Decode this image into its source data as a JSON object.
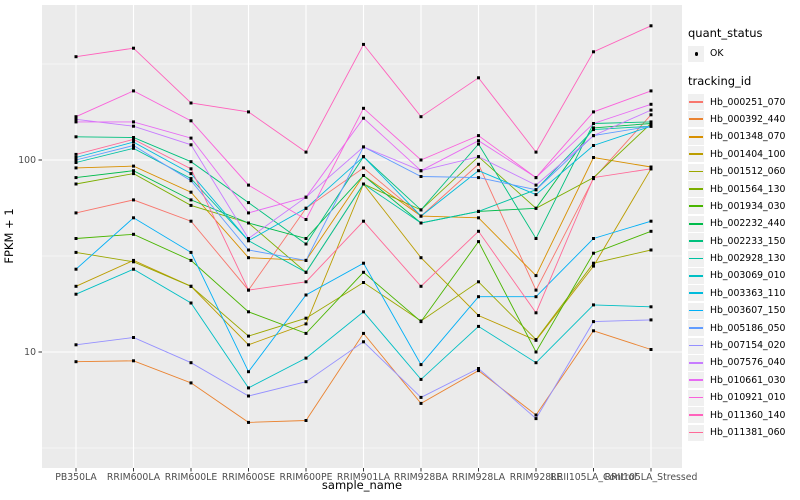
{
  "figure": {
    "background": "#FFFFFF",
    "panel_background": "#EBEBEB",
    "gridline_color": "#FFFFFF",
    "tick_text_color": "#4D4D4D",
    "title_text_color": "#000000"
  },
  "chart_data": {
    "type": "line",
    "title": "",
    "xlabel": "sample_name",
    "ylabel": "FPKM + 1",
    "y_scale": "log10",
    "ylim": [
      2.5,
      650
    ],
    "y_ticks": [
      10,
      100
    ],
    "y_tick_labels": [
      "10",
      "100"
    ],
    "y_minor_ticks": [
      3.162,
      31.62,
      316.2
    ],
    "grid": true,
    "point_shape": "small black point (quant_status OK)",
    "x_categories": [
      "PB350LA",
      "RRIM600LA",
      "RRIM600LE",
      "RRIM600SE",
      "RRIM600PE",
      "RRIM901LA",
      "RRIM928BA",
      "RRIM928LA",
      "RRIM928LE",
      "RRII105LA_Control",
      "RRII105LA_Stressed"
    ],
    "legend": {
      "position": "right",
      "quant_title": "quant_status",
      "quant_items": [
        {
          "label": "OK"
        }
      ],
      "series_title": "tracking_id"
    },
    "series": [
      {
        "name": "Hb_000251_070",
        "color": "#F8766D",
        "values": [
          53,
          62,
          48,
          21,
          56,
          91,
          51,
          95,
          21,
          80,
          172
        ]
      },
      {
        "name": "Hb_000392_440",
        "color": "#EA8331",
        "values": [
          8.9,
          9,
          6.9,
          4.3,
          4.4,
          12.5,
          5.4,
          8,
          4.7,
          12.9,
          10.3
        ]
      },
      {
        "name": "Hb_001348_070",
        "color": "#D89000",
        "values": [
          91,
          93,
          68,
          31,
          30,
          83,
          51,
          50,
          25,
          103,
          92
        ]
      },
      {
        "name": "Hb_001404_100",
        "color": "#BB9D00",
        "values": [
          22,
          30,
          22,
          10.9,
          14,
          75,
          31,
          15.5,
          11.5,
          28,
          90
        ]
      },
      {
        "name": "Hb_001512_060",
        "color": "#9CA700",
        "values": [
          33,
          29.5,
          22,
          12.1,
          15,
          23,
          14.5,
          23.2,
          11.6,
          29,
          34
        ]
      },
      {
        "name": "Hb_001564_130",
        "color": "#7CAE00",
        "values": [
          75,
          85,
          58,
          47,
          26,
          75,
          55,
          104,
          56,
          81,
          155
        ]
      },
      {
        "name": "Hb_001934_030",
        "color": "#49B500",
        "values": [
          39,
          41,
          30,
          16.2,
          12.5,
          26,
          14.4,
          37.6,
          10,
          32.7,
          42.5
        ]
      },
      {
        "name": "Hb_002232_440",
        "color": "#00BB4B",
        "values": [
          81,
          88,
          62,
          47,
          39,
          83,
          47,
          54,
          56,
          147,
          155
        ]
      },
      {
        "name": "Hb_002233_150",
        "color": "#00C07D",
        "values": [
          132,
          131,
          98,
          60,
          36.5,
          104,
          55,
          121,
          39,
          155,
          158
        ]
      },
      {
        "name": "Hb_002928_130",
        "color": "#00C1A2",
        "values": [
          97,
          115,
          80,
          38,
          26,
          75,
          47,
          54,
          70,
          144,
          150
        ]
      },
      {
        "name": "Hb_003069_010",
        "color": "#00BFC4",
        "values": [
          20,
          27,
          18,
          6.5,
          9.3,
          16.2,
          7.2,
          13.6,
          8.8,
          17.6,
          17.2
        ]
      },
      {
        "name": "Hb_003363_110",
        "color": "#00BBDC",
        "values": [
          103,
          124,
          85,
          38,
          56,
          104,
          51,
          88,
          66,
          119,
          150
        ]
      },
      {
        "name": "Hb_003607_150",
        "color": "#00AFF6",
        "values": [
          27,
          50,
          33,
          7.9,
          19.8,
          29,
          8.6,
          19.4,
          19.4,
          39,
          48
        ]
      },
      {
        "name": "Hb_005186_050",
        "color": "#619CFF",
        "values": [
          100,
          119,
          78,
          34,
          30,
          117,
          82,
          81,
          70,
          134,
          150
        ]
      },
      {
        "name": "Hb_007154_020",
        "color": "#9590FF",
        "values": [
          10.9,
          11.9,
          8.8,
          5.9,
          7,
          11.3,
          5.8,
          8.2,
          4.5,
          14.4,
          14.7
        ]
      },
      {
        "name": "Hb_007576_040",
        "color": "#C77CFF",
        "values": [
          163,
          150,
          120,
          39,
          64,
          117,
          88,
          104,
          74,
          134,
          182
        ]
      },
      {
        "name": "Hb_010661_030",
        "color": "#E76BF3",
        "values": [
          158,
          158,
          130,
          53,
          64,
          165,
          88,
          126,
          81,
          155,
          195
        ]
      },
      {
        "name": "Hb_010921_010",
        "color": "#FA62DB",
        "values": [
          168,
          229,
          160,
          74,
          49,
          186,
          100,
          134,
          81,
          178,
          229
        ]
      },
      {
        "name": "Hb_011360_140",
        "color": "#FF62BC",
        "values": [
          345,
          382,
          198,
          178,
          110,
          400,
          168,
          268,
          110,
          366,
          500
        ]
      },
      {
        "name": "Hb_011381_060",
        "color": "#FF6A98",
        "values": [
          107,
          128,
          90,
          21,
          23.2,
          48,
          22,
          42.5,
          16,
          81,
          90
        ]
      }
    ]
  }
}
